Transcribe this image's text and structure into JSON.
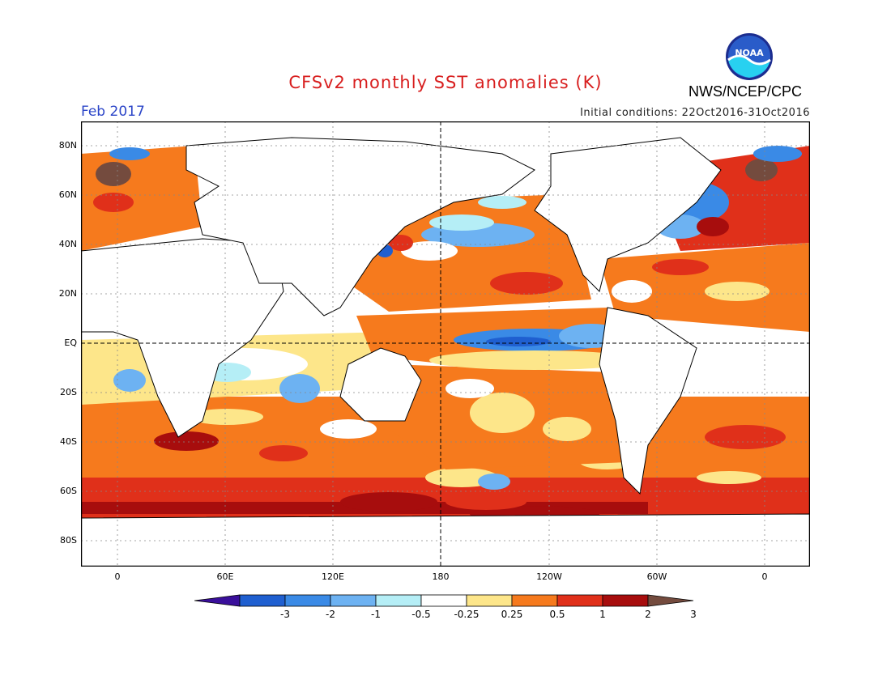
{
  "header": {
    "title": "CFSv2 monthly SST anomalies (K)",
    "period": "Feb 2017",
    "initial_conditions": "Initial conditions: 22Oct2016-31Oct2016",
    "agency": "NWS/NCEP/CPC",
    "logo_text": "NOAA"
  },
  "map": {
    "lat_labels": [
      "80N",
      "60N",
      "40N",
      "20N",
      "EQ",
      "20S",
      "40S",
      "60S",
      "80S"
    ],
    "lon_labels": [
      "0",
      "60E",
      "120E",
      "180",
      "120W",
      "60W",
      "0"
    ]
  },
  "colorbar": {
    "labels": [
      "-3",
      "-2",
      "-1",
      "-0.5",
      "-0.25",
      "0.25",
      "0.5",
      "1",
      "2",
      "3"
    ],
    "colors": [
      "#3a0f9b",
      "#1f5fd0",
      "#3a8ae6",
      "#6db2f2",
      "#b5eef6",
      "#ffffff",
      "#fde68a",
      "#f67a1d",
      "#e0301a",
      "#a70d0d",
      "#744b3e"
    ]
  }
}
